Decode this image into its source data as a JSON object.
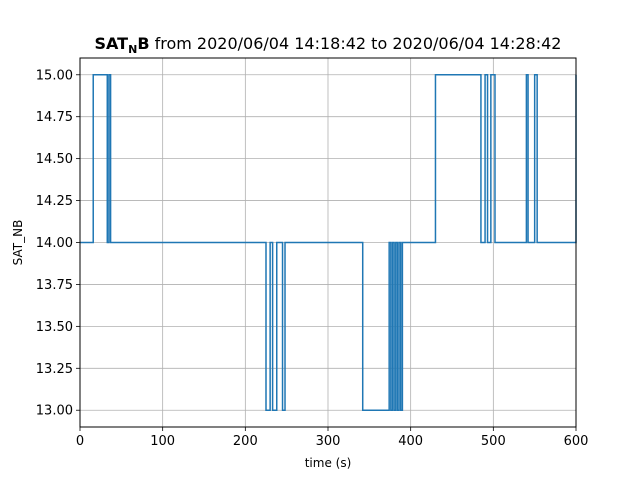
{
  "chart_data": {
    "type": "line",
    "title": {
      "bold_main": "SAT",
      "bold_sub": "N",
      "bold_tail": "B",
      "rest": " from 2020/06/04 14:18:42 to 2020/06/04 14:28:42"
    },
    "xlabel": "time (s)",
    "ylabel": "SAT_NB",
    "xlim": [
      0,
      600
    ],
    "ylim": [
      12.9,
      15.1
    ],
    "x_ticks": [
      0,
      100,
      200,
      300,
      400,
      500,
      600
    ],
    "x_tick_labels": [
      "0",
      "100",
      "200",
      "300",
      "400",
      "500",
      "600"
    ],
    "y_ticks": [
      13.0,
      13.25,
      13.5,
      13.75,
      14.0,
      14.25,
      14.5,
      14.75,
      15.0
    ],
    "y_tick_labels": [
      "13.00",
      "13.25",
      "13.50",
      "13.75",
      "14.00",
      "14.25",
      "14.50",
      "14.75",
      "15.00"
    ],
    "grid": true,
    "step": "post",
    "color": "#1f77b4",
    "series": [
      {
        "x": [
          0,
          16,
          33,
          35,
          37,
          225,
          230,
          233,
          238,
          245,
          248,
          342,
          374,
          376,
          378,
          380,
          382,
          384,
          386,
          388,
          390,
          430,
          485,
          490,
          493,
          497,
          502,
          540,
          542,
          550,
          553,
          600
        ],
        "y": [
          14,
          15,
          14,
          15,
          14,
          13,
          14,
          13,
          14,
          13,
          14,
          13,
          14,
          13,
          14,
          13,
          14,
          13,
          14,
          13,
          14,
          15,
          14,
          15,
          14,
          15,
          14,
          15,
          14,
          15,
          14,
          15
        ]
      }
    ]
  }
}
